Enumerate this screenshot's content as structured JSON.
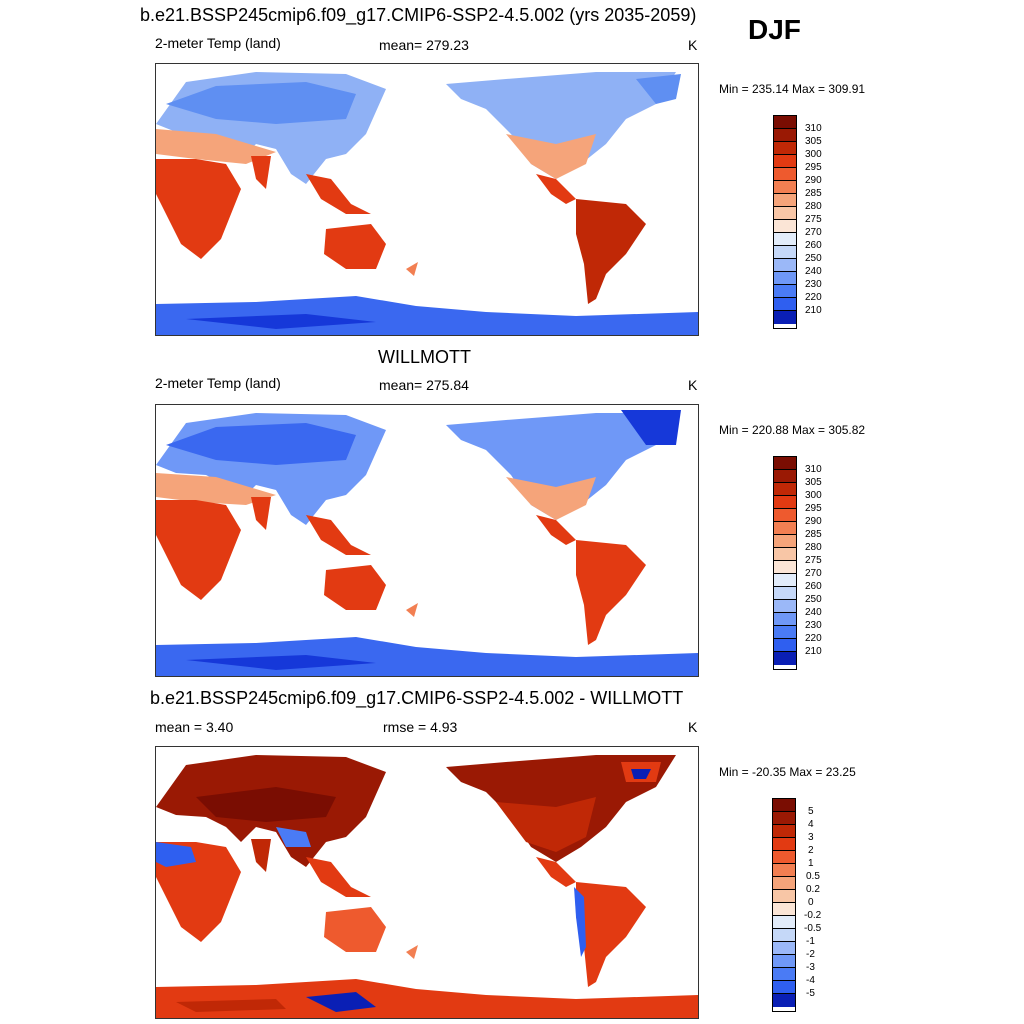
{
  "season": "DJF",
  "colors": {
    "abs_scale": [
      "#00007a",
      "#0a1fb5",
      "#1638d9",
      "#2f5ff0",
      "#4a7bf5",
      "#6f98f7",
      "#9bb8f8",
      "#c5d8f8",
      "#e2ecfa",
      "#fbe5d6",
      "#f8c6a6",
      "#f5a47a",
      "#f27f52",
      "#ee5a2e",
      "#e23a12",
      "#c02806",
      "#9a1904",
      "#7a0d02"
    ],
    "anom_scale": [
      "#00007a",
      "#0a1fb5",
      "#1638d9",
      "#2f5ff0",
      "#4a7bf5",
      "#6f98f7",
      "#9bb8f8",
      "#c5d8f8",
      "#e2ecfa",
      "#fbe5d6",
      "#f8c6a6",
      "#f5a47a",
      "#f27f52",
      "#ee5a2e",
      "#e23a12",
      "#c02806",
      "#9a1904",
      "#7a0d02"
    ]
  },
  "panels": [
    {
      "title": "b.e21.BSSP245cmip6.f09_g17.CMIP6-SSP2-4.5.002 (yrs 2035-2059)",
      "left_label": "2-meter Temp (land)",
      "center_label": "mean= 279.23",
      "units": "K",
      "minmax": "Min = 235.14 Max = 309.91",
      "colorbar_ticks": [
        "310",
        "305",
        "300",
        "295",
        "290",
        "285",
        "280",
        "275",
        "270",
        "260",
        "250",
        "240",
        "230",
        "220",
        "210"
      ],
      "mean": 279.23,
      "min": 235.14,
      "max": 309.91
    },
    {
      "title": "WILLMOTT",
      "left_label": "2-meter Temp (land)",
      "center_label": "mean= 275.84",
      "units": "K",
      "minmax": "Min = 220.88 Max = 305.82",
      "colorbar_ticks": [
        "310",
        "305",
        "300",
        "295",
        "290",
        "285",
        "280",
        "275",
        "270",
        "260",
        "250",
        "240",
        "230",
        "220",
        "210"
      ],
      "mean": 275.84,
      "min": 220.88,
      "max": 305.82
    },
    {
      "title": "b.e21.BSSP245cmip6.f09_g17.CMIP6-SSP2-4.5.002 - WILLMOTT",
      "left_label": "mean =   3.40",
      "center_label": "rmse =   4.93",
      "units": "K",
      "minmax": "Min = -20.35 Max =  23.25",
      "colorbar_ticks": [
        "5",
        "4",
        "3",
        "2",
        "1",
        "0.5",
        "0.2",
        "0",
        "-0.2",
        "-0.5",
        "-1",
        "-2",
        "-3",
        "-4",
        "-5"
      ],
      "mean": 3.4,
      "rmse": 4.93,
      "min": -20.35,
      "max": 23.25
    }
  ]
}
